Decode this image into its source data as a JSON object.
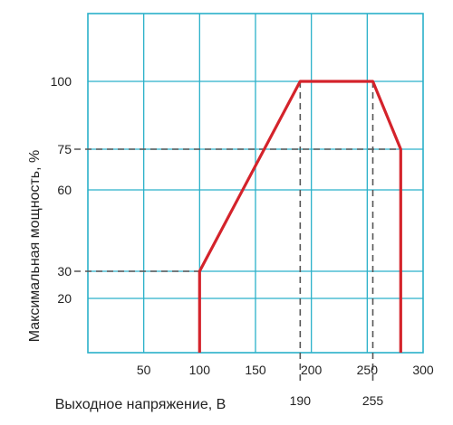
{
  "chart_data": {
    "type": "line",
    "xlabel": "Выходное напряжение, В",
    "ylabel": "Максимальная мощность, %",
    "xlim": [
      0,
      300
    ],
    "ylim": [
      0,
      125
    ],
    "grid": true,
    "x_ticks": [
      {
        "value": 50,
        "label": "50"
      },
      {
        "value": 100,
        "label": "100"
      },
      {
        "value": 150,
        "label": "150"
      },
      {
        "value": 200,
        "label": "200"
      },
      {
        "value": 250,
        "label": "250"
      },
      {
        "value": 300,
        "label": "300"
      }
    ],
    "x_extra_ticks": [
      {
        "value": 190,
        "label": "190"
      },
      {
        "value": 255,
        "label": "255"
      }
    ],
    "y_ticks": [
      {
        "value": 20,
        "label": "20"
      },
      {
        "value": 30,
        "label": "30"
      },
      {
        "value": 60,
        "label": "60"
      },
      {
        "value": 75,
        "label": "75"
      },
      {
        "value": 100,
        "label": "100"
      }
    ],
    "series": [
      {
        "color": "#d4232b",
        "points": [
          {
            "x": 100,
            "y": 0
          },
          {
            "x": 100,
            "y": 30
          },
          {
            "x": 190,
            "y": 100
          },
          {
            "x": 255,
            "y": 100
          },
          {
            "x": 280,
            "y": 75
          },
          {
            "x": 280,
            "y": 0
          }
        ]
      }
    ],
    "reference_lines": [
      {
        "kind": "horizontal",
        "y": 75,
        "x_to": 280
      },
      {
        "kind": "horizontal",
        "y": 30,
        "x_to": 100
      },
      {
        "kind": "vertical",
        "x": 190,
        "y_to": 100
      },
      {
        "kind": "vertical",
        "x": 255,
        "y_to": 100
      }
    ],
    "colors": {
      "grid": "#2ab1c9",
      "series": "#d4232b",
      "reference": "#555555"
    }
  }
}
